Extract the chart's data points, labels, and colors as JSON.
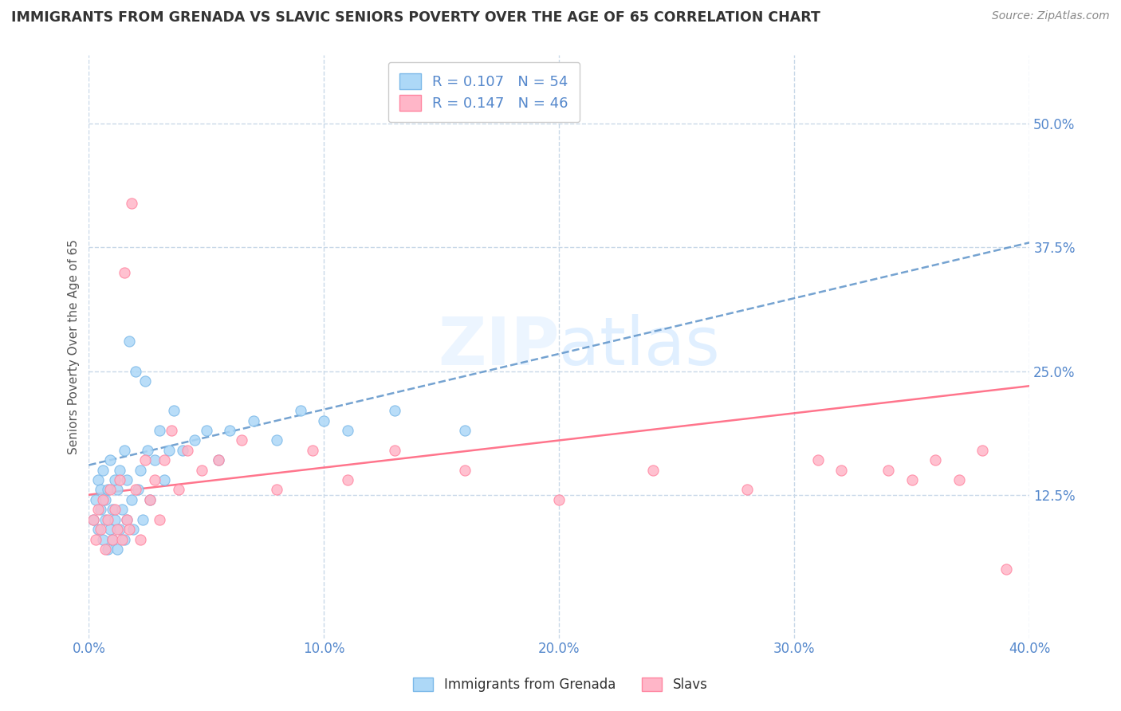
{
  "title": "IMMIGRANTS FROM GRENADA VS SLAVIC SENIORS POVERTY OVER THE AGE OF 65 CORRELATION CHART",
  "source": "Source: ZipAtlas.com",
  "ylabel": "Seniors Poverty Over the Age of 65",
  "xlim": [
    0.0,
    0.4
  ],
  "ylim": [
    -0.02,
    0.57
  ],
  "xtick_vals": [
    0.0,
    0.1,
    0.2,
    0.3,
    0.4
  ],
  "ytick_vals": [
    0.125,
    0.25,
    0.375,
    0.5
  ],
  "series1_label": "Immigrants from Grenada",
  "series1_R": "0.107",
  "series1_N": "54",
  "series1_color": "#ADD8F7",
  "series1_edge": "#7AB8E8",
  "series2_label": "Slavs",
  "series2_R": "0.147",
  "series2_N": "46",
  "series2_color": "#FFB6C8",
  "series2_edge": "#FF85A0",
  "trend1_color": "#6699CC",
  "trend2_color": "#FF6680",
  "background_color": "#FFFFFF",
  "grid_color": "#C8D8E8",
  "tick_color": "#5588CC",
  "series1_x": [
    0.002,
    0.003,
    0.004,
    0.004,
    0.005,
    0.005,
    0.006,
    0.006,
    0.007,
    0.007,
    0.008,
    0.008,
    0.009,
    0.009,
    0.01,
    0.01,
    0.011,
    0.011,
    0.012,
    0.012,
    0.013,
    0.013,
    0.014,
    0.015,
    0.015,
    0.016,
    0.016,
    0.017,
    0.018,
    0.019,
    0.02,
    0.021,
    0.022,
    0.023,
    0.024,
    0.025,
    0.026,
    0.028,
    0.03,
    0.032,
    0.034,
    0.036,
    0.04,
    0.045,
    0.05,
    0.055,
    0.06,
    0.07,
    0.08,
    0.09,
    0.1,
    0.11,
    0.13,
    0.16
  ],
  "series1_y": [
    0.1,
    0.12,
    0.14,
    0.09,
    0.13,
    0.11,
    0.08,
    0.15,
    0.1,
    0.12,
    0.07,
    0.13,
    0.09,
    0.16,
    0.11,
    0.08,
    0.14,
    0.1,
    0.07,
    0.13,
    0.09,
    0.15,
    0.11,
    0.08,
    0.17,
    0.1,
    0.14,
    0.28,
    0.12,
    0.09,
    0.25,
    0.13,
    0.15,
    0.1,
    0.24,
    0.17,
    0.12,
    0.16,
    0.19,
    0.14,
    0.17,
    0.21,
    0.17,
    0.18,
    0.19,
    0.16,
    0.19,
    0.2,
    0.18,
    0.21,
    0.2,
    0.19,
    0.21,
    0.19
  ],
  "series2_x": [
    0.002,
    0.003,
    0.004,
    0.005,
    0.006,
    0.007,
    0.008,
    0.009,
    0.01,
    0.011,
    0.012,
    0.013,
    0.014,
    0.015,
    0.016,
    0.017,
    0.018,
    0.02,
    0.022,
    0.024,
    0.026,
    0.028,
    0.03,
    0.032,
    0.035,
    0.038,
    0.042,
    0.048,
    0.055,
    0.065,
    0.08,
    0.095,
    0.11,
    0.13,
    0.16,
    0.2,
    0.24,
    0.28,
    0.31,
    0.32,
    0.34,
    0.35,
    0.36,
    0.37,
    0.38,
    0.39
  ],
  "series2_y": [
    0.1,
    0.08,
    0.11,
    0.09,
    0.12,
    0.07,
    0.1,
    0.13,
    0.08,
    0.11,
    0.09,
    0.14,
    0.08,
    0.35,
    0.1,
    0.09,
    0.42,
    0.13,
    0.08,
    0.16,
    0.12,
    0.14,
    0.1,
    0.16,
    0.19,
    0.13,
    0.17,
    0.15,
    0.16,
    0.18,
    0.13,
    0.17,
    0.14,
    0.17,
    0.15,
    0.12,
    0.15,
    0.13,
    0.16,
    0.15,
    0.15,
    0.14,
    0.16,
    0.14,
    0.17,
    0.05
  ],
  "trend1_x0": 0.0,
  "trend1_y0": 0.155,
  "trend1_x1": 0.4,
  "trend1_y1": 0.38,
  "trend2_x0": 0.0,
  "trend2_y0": 0.125,
  "trend2_x1": 0.4,
  "trend2_y1": 0.235
}
